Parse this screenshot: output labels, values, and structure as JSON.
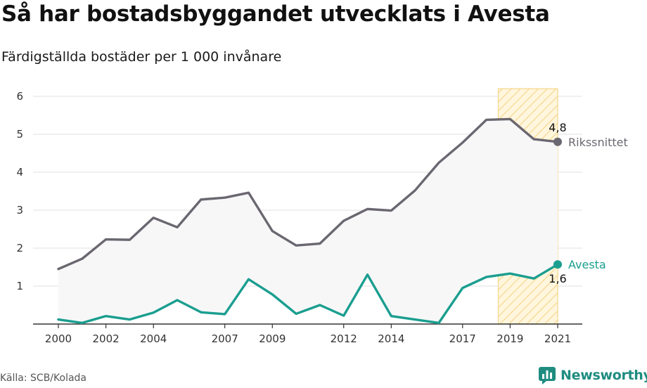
{
  "title": "Så har bostadsbyggandet utvecklats i Avesta",
  "subtitle": "Färdigställda bostäder per 1 000 invånare",
  "source": "Källa: SCB/Kolada",
  "brand": {
    "name": "Newsworthy",
    "icon": "newsworthy-logo-icon",
    "color": "#1f8c80"
  },
  "chart_data": {
    "type": "line",
    "x": [
      2000,
      2001,
      2002,
      2003,
      2004,
      2005,
      2006,
      2007,
      2008,
      2009,
      2010,
      2011,
      2012,
      2013,
      2014,
      2015,
      2016,
      2017,
      2018,
      2019,
      2020,
      2021
    ],
    "x_tick_labels": [
      "2000",
      "2002",
      "2004",
      "2007",
      "2009",
      "2012",
      "2014",
      "2017",
      "2019",
      "2021"
    ],
    "y_ticks": [
      "1",
      "2",
      "3",
      "4",
      "5",
      "6"
    ],
    "ylim": [
      0,
      6.2
    ],
    "grid": true,
    "highlight_range": [
      2018.5,
      2021
    ],
    "series": [
      {
        "name": "Rikssnittet",
        "color": "#6b6770",
        "values": [
          1.45,
          1.72,
          2.23,
          2.22,
          2.8,
          2.55,
          3.28,
          3.33,
          3.46,
          2.45,
          2.07,
          2.12,
          2.72,
          3.03,
          2.99,
          3.52,
          4.25,
          4.78,
          5.38,
          5.4,
          4.87,
          4.8
        ],
        "end_label": "4,8"
      },
      {
        "name": "Avesta",
        "color": "#1a9e8f",
        "values": [
          0.12,
          0.03,
          0.21,
          0.12,
          0.3,
          0.63,
          0.31,
          0.26,
          1.18,
          0.78,
          0.27,
          0.5,
          0.22,
          1.3,
          0.21,
          0.12,
          0.03,
          0.95,
          1.24,
          1.33,
          1.2,
          1.57
        ],
        "end_label": "1,6"
      }
    ]
  }
}
